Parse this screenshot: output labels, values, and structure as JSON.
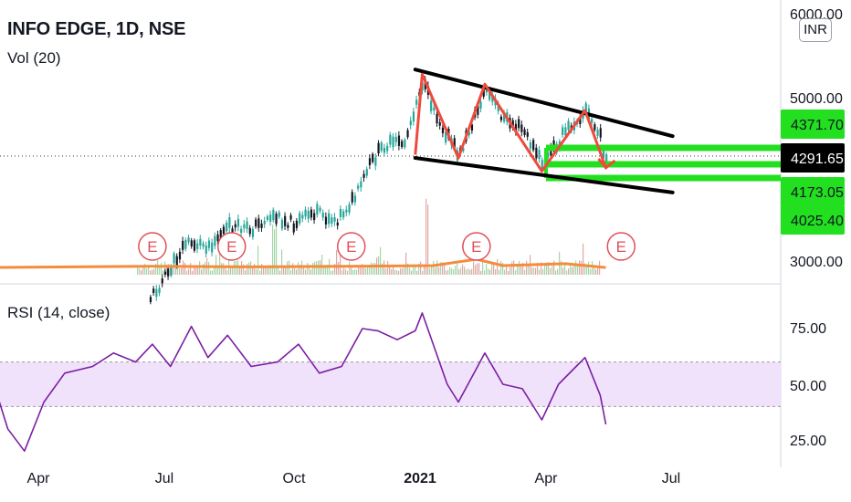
{
  "header": {
    "title": "INFO EDGE, 1D, NSE",
    "volume_label": "Vol (20)",
    "rsi_label": "RSI (14, close)"
  },
  "currency_button": "INR",
  "colors": {
    "up": "#26a69a",
    "down": "#131722",
    "ema": "#f48c3c",
    "rsi": "#7b1fa2",
    "rsi_band": "#f1e2fb",
    "pattern": "#ef4b3c",
    "trendline": "#000000",
    "support": "#22e01f",
    "earnings": "#e04f59"
  },
  "chart_data": [
    {
      "type": "candlestick",
      "title": "INFO EDGE, 1D, NSE",
      "x_ticks": [
        "Apr",
        "Jul",
        "Oct",
        "2021",
        "Apr",
        "Jul"
      ],
      "y_ticks": [
        "6000.00",
        "5000.00",
        "3000.00"
      ],
      "price_labels": [
        {
          "value": "4371.70",
          "kind": "support"
        },
        {
          "value": "4291.65",
          "kind": "last"
        },
        {
          "value": "4173.05",
          "kind": "support"
        },
        {
          "value": "4025.40",
          "kind": "support"
        }
      ],
      "close_path": [
        {
          "date": "2020-06-20",
          "close": 2650
        },
        {
          "date": "2020-07-03",
          "close": 2900
        },
        {
          "date": "2020-07-15",
          "close": 3220
        },
        {
          "date": "2020-08-01",
          "close": 3200
        },
        {
          "date": "2020-08-15",
          "close": 3400
        },
        {
          "date": "2020-09-01",
          "close": 3380
        },
        {
          "date": "2020-09-15",
          "close": 3550
        },
        {
          "date": "2020-10-01",
          "close": 3450
        },
        {
          "date": "2020-10-15",
          "close": 3580
        },
        {
          "date": "2020-11-01",
          "close": 3500
        },
        {
          "date": "2020-11-15",
          "close": 3800
        },
        {
          "date": "2020-11-25",
          "close": 4250
        },
        {
          "date": "2020-12-05",
          "close": 4550
        },
        {
          "date": "2020-12-20",
          "close": 4600
        },
        {
          "date": "2021-01-01",
          "close": 5700
        },
        {
          "date": "2021-01-15",
          "close": 4900
        },
        {
          "date": "2021-01-28",
          "close": 4380
        },
        {
          "date": "2021-02-16",
          "close": 5550
        },
        {
          "date": "2021-03-01",
          "close": 5000
        },
        {
          "date": "2021-03-15",
          "close": 4800
        },
        {
          "date": "2021-03-29",
          "close": 4250
        },
        {
          "date": "2021-04-15",
          "close": 4800
        },
        {
          "date": "2021-04-29",
          "close": 5150
        },
        {
          "date": "2021-05-10",
          "close": 4650
        },
        {
          "date": "2021-05-14",
          "close": 4290
        }
      ],
      "pattern_zigzag": [
        {
          "date": "2020-12-28",
          "price": 4400
        },
        {
          "date": "2021-01-02",
          "price": 5850
        },
        {
          "date": "2021-01-28",
          "price": 4350
        },
        {
          "date": "2021-02-16",
          "price": 5650
        },
        {
          "date": "2021-03-29",
          "price": 4150
        },
        {
          "date": "2021-04-29",
          "price": 5150
        },
        {
          "date": "2021-05-14",
          "price": 4200
        }
      ],
      "trendlines": [
        {
          "from": {
            "date": "2020-12-28",
            "price": 5950
          },
          "to": {
            "date": "2021-07-01",
            "price": 4700
          }
        },
        {
          "from": {
            "date": "2020-12-28",
            "price": 4350
          },
          "to": {
            "date": "2021-07-01",
            "price": 3850
          }
        }
      ],
      "earnings_markers": [
        "2020-06-22",
        "2020-08-18",
        "2020-11-12",
        "2021-02-10",
        "2021-05-25"
      ],
      "volume_ema": [
        {
          "date": "2020-03-01",
          "v": 0.35
        },
        {
          "date": "2020-06-22",
          "v": 0.45
        },
        {
          "date": "2020-09-01",
          "v": 0.4
        },
        {
          "date": "2020-11-12",
          "v": 0.45
        },
        {
          "date": "2021-01-10",
          "v": 0.5
        },
        {
          "date": "2021-02-10",
          "v": 1.0
        },
        {
          "date": "2021-03-01",
          "v": 0.5
        },
        {
          "date": "2021-04-15",
          "v": 0.65
        },
        {
          "date": "2021-05-14",
          "v": 0.35
        }
      ]
    },
    {
      "type": "line",
      "title": "RSI (14, close)",
      "y_ticks": [
        "75.00",
        "50.00",
        "25.00"
      ],
      "band": [
        40,
        60
      ],
      "ylim": [
        20,
        85
      ],
      "series": [
        {
          "date": "2020-03-01",
          "v": 48
        },
        {
          "date": "2020-03-10",
          "v": 30
        },
        {
          "date": "2020-03-22",
          "v": 20
        },
        {
          "date": "2020-04-05",
          "v": 42
        },
        {
          "date": "2020-04-20",
          "v": 55
        },
        {
          "date": "2020-05-10",
          "v": 58
        },
        {
          "date": "2020-05-25",
          "v": 64
        },
        {
          "date": "2020-06-10",
          "v": 60
        },
        {
          "date": "2020-06-22",
          "v": 68
        },
        {
          "date": "2020-07-05",
          "v": 58
        },
        {
          "date": "2020-07-20",
          "v": 76
        },
        {
          "date": "2020-08-01",
          "v": 62
        },
        {
          "date": "2020-08-15",
          "v": 72
        },
        {
          "date": "2020-09-01",
          "v": 58
        },
        {
          "date": "2020-09-20",
          "v": 60
        },
        {
          "date": "2020-10-05",
          "v": 68
        },
        {
          "date": "2020-10-20",
          "v": 55
        },
        {
          "date": "2020-11-05",
          "v": 58
        },
        {
          "date": "2020-11-20",
          "v": 75
        },
        {
          "date": "2020-12-01",
          "v": 74
        },
        {
          "date": "2020-12-15",
          "v": 70
        },
        {
          "date": "2020-12-28",
          "v": 74
        },
        {
          "date": "2021-01-02",
          "v": 82
        },
        {
          "date": "2021-01-20",
          "v": 50
        },
        {
          "date": "2021-01-28",
          "v": 42
        },
        {
          "date": "2021-02-16",
          "v": 64
        },
        {
          "date": "2021-03-01",
          "v": 50
        },
        {
          "date": "2021-03-15",
          "v": 48
        },
        {
          "date": "2021-03-29",
          "v": 34
        },
        {
          "date": "2021-04-10",
          "v": 50
        },
        {
          "date": "2021-04-29",
          "v": 62
        },
        {
          "date": "2021-05-10",
          "v": 45
        },
        {
          "date": "2021-05-14",
          "v": 32
        }
      ]
    }
  ]
}
